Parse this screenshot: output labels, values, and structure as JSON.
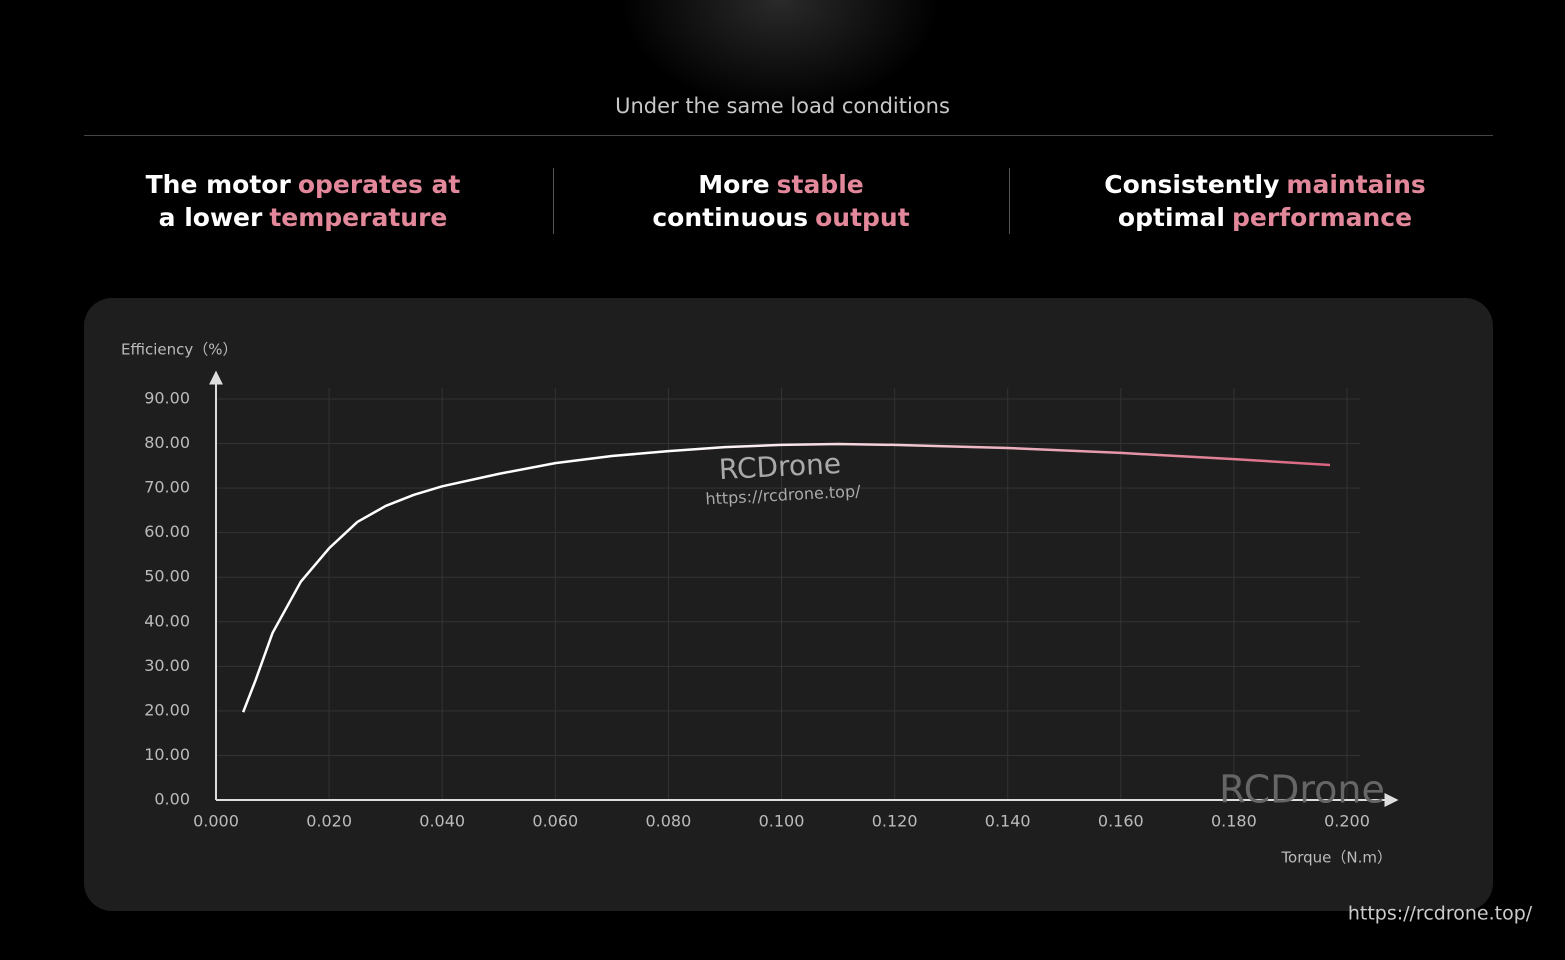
{
  "header": {
    "title": "Under the same load conditions"
  },
  "features": [
    {
      "lines": [
        [
          {
            "text": "The motor",
            "color": "#ffffff"
          },
          {
            "text": "operates at",
            "color": "#e2889a"
          }
        ],
        [
          {
            "text": "a lower",
            "color": "#ffffff"
          },
          {
            "text": "temperature",
            "color": "#e2889a"
          }
        ]
      ]
    },
    {
      "lines": [
        [
          {
            "text": "More",
            "color": "#ffffff"
          },
          {
            "text": "stable",
            "color": "#e2889a"
          }
        ],
        [
          {
            "text": "continuous",
            "color": "#ffffff"
          },
          {
            "text": "output",
            "color": "#e2889a"
          }
        ]
      ]
    },
    {
      "lines": [
        [
          {
            "text": "Consistently",
            "color": "#ffffff"
          },
          {
            "text": "maintains",
            "color": "#e2889a"
          }
        ],
        [
          {
            "text": "optimal",
            "color": "#ffffff"
          },
          {
            "text": "performance",
            "color": "#e2889a"
          }
        ]
      ]
    }
  ],
  "chart_data": {
    "type": "line",
    "y_label": "Efficiency（%）",
    "x_label": "Torque（N.m）",
    "x": [
      0.0048,
      0.007,
      0.01,
      0.015,
      0.02,
      0.025,
      0.03,
      0.035,
      0.04,
      0.05,
      0.06,
      0.07,
      0.08,
      0.09,
      0.1,
      0.11,
      0.12,
      0.14,
      0.16,
      0.18,
      0.197
    ],
    "series": [
      {
        "color": "#ffffff",
        "gradient_to": "#d9647f",
        "values": [
          19.7,
          26.9,
          37.5,
          49,
          56.5,
          62.4,
          66,
          68.5,
          70.4,
          73.2,
          75.6,
          77.2,
          78.3,
          79.2,
          79.7,
          79.9,
          79.7,
          79.0,
          77.9,
          76.5,
          75.2
        ]
      }
    ],
    "xlim": [
      0,
      0.2
    ],
    "ylim": [
      0,
      90
    ],
    "xticks": [
      {
        "value": 0,
        "label": "0.000"
      },
      {
        "value": 0.02,
        "label": "0.020"
      },
      {
        "value": 0.04,
        "label": "0.040"
      },
      {
        "value": 0.06,
        "label": "0.060"
      },
      {
        "value": 0.08,
        "label": "0.080"
      },
      {
        "value": 0.1,
        "label": "0.100"
      },
      {
        "value": 0.12,
        "label": "0.120"
      },
      {
        "value": 0.14,
        "label": "0.140"
      },
      {
        "value": 0.16,
        "label": "0.160"
      },
      {
        "value": 0.18,
        "label": "0.180"
      },
      {
        "value": 0.2,
        "label": "0.200"
      }
    ],
    "yticks": [
      {
        "value": 0,
        "label": "0.00"
      },
      {
        "value": 10,
        "label": "10.00"
      },
      {
        "value": 20,
        "label": "20.00"
      },
      {
        "value": 30,
        "label": "30.00"
      },
      {
        "value": 40,
        "label": "40.00"
      },
      {
        "value": 50,
        "label": "50.00"
      },
      {
        "value": 60,
        "label": "60.00"
      },
      {
        "value": 70,
        "label": "70.00"
      },
      {
        "value": 80,
        "label": "80.00"
      },
      {
        "value": 90,
        "label": "90.00"
      }
    ],
    "grid": true
  },
  "watermarks": [
    "RCDrone",
    "https://rcdrone.top/",
    "RCDrone",
    "https://rcdrone.top/"
  ]
}
